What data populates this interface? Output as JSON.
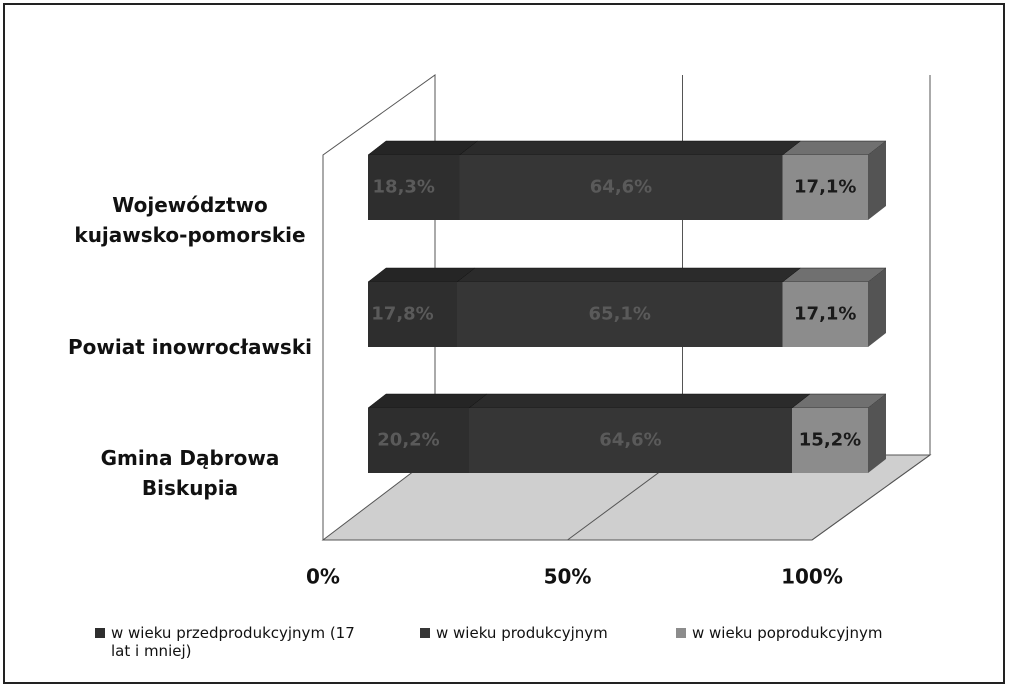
{
  "chart_data": {
    "type": "bar3d_stacked_horizontal",
    "categories": [
      "Województwo kujawsko-pomorskie",
      "Powiat inowrocławski",
      "Gmina Dąbrowa Biskupia"
    ],
    "series": [
      {
        "name": "w wieku przedprodukcyjnym (17 lat i mniej)",
        "color": "#2e2e2e",
        "values": [
          18.3,
          17.8,
          20.2
        ],
        "value_labels": [
          "18,3%",
          "17,8%",
          "20,2%"
        ]
      },
      {
        "name": "w wieku produkcyjnym",
        "color": "#363636",
        "values": [
          64.6,
          65.1,
          64.6
        ],
        "value_labels": [
          "64,6%",
          "65,1%",
          "64,6%"
        ]
      },
      {
        "name": "w wieku poprodukcyjnym",
        "color": "#8c8c8c",
        "values": [
          17.1,
          17.1,
          15.2
        ],
        "value_labels": [
          "17,1%",
          "17,1%",
          "15,2%"
        ]
      }
    ],
    "xlim": [
      0,
      100
    ],
    "xticks": [
      {
        "value": 0,
        "label": "0%"
      },
      {
        "value": 50,
        "label": "50%"
      },
      {
        "value": 100,
        "label": "100%"
      }
    ],
    "grid": true
  }
}
